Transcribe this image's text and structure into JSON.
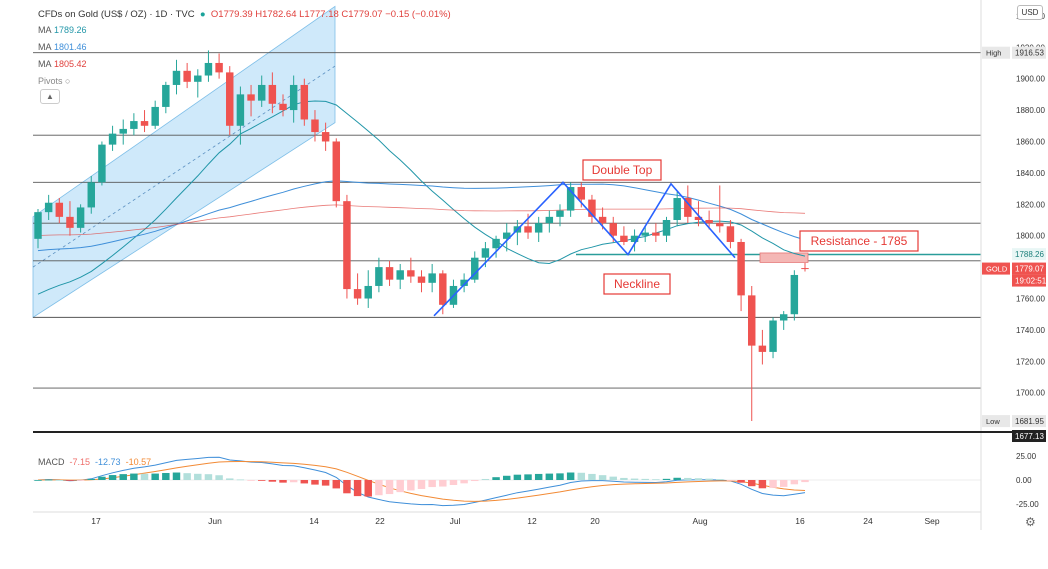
{
  "header": {
    "symbol": "CFDs on Gold (US$ / OZ) · 1D · TVC",
    "ohlc": "O1779.39 H1782.64 L1777.18 C1779.07 −0.15 (−0.01%)"
  },
  "indicators": {
    "ma": [
      {
        "label": "MA",
        "value": "1789.26",
        "color": "#2196a8"
      },
      {
        "label": "MA",
        "value": "1801.46",
        "color": "#3f8fd9"
      },
      {
        "label": "MA",
        "value": "1805.42",
        "color": "#e0403c"
      }
    ],
    "pivots_label": "Pivots",
    "collapse_icon": "chevron-up-icon"
  },
  "currency_button": "USD",
  "colors": {
    "up": "#26a69a",
    "down": "#ef5350",
    "channel": "#bfe1f8",
    "pattern": "#2962ff",
    "annotation": "#e53935"
  },
  "annotations": {
    "double_top": "Double Top",
    "neckline": "Neckline",
    "resistance": "Resistance - 1785"
  },
  "price_tags": {
    "high_label": "High",
    "high_value": "1916.53",
    "low_label": "Low",
    "low_value": "1681.95",
    "level_value": "1788.26",
    "gold_label": "GOLD",
    "gold_value": "1779.07",
    "countdown": "19:02:51",
    "bottom_value": "1677.13"
  },
  "macd": {
    "label": "MACD",
    "hist": "-7.15",
    "macd": "-12.73",
    "signal": "-10.57"
  },
  "chart_data": {
    "type": "candlestick",
    "title": "CFDs on Gold (US$ / OZ) · 1D · TVC",
    "y_ticks": [
      1940,
      1920,
      1900,
      1880,
      1860,
      1840,
      1820,
      1800,
      1780,
      1760,
      1740,
      1720,
      1700
    ],
    "y_range": [
      1675,
      1945
    ],
    "x_ticks": [
      "17",
      "Jun",
      "14",
      "22",
      "Jul",
      "12",
      "20",
      "Aug",
      "16",
      "24",
      "Sep"
    ],
    "horizontal_levels": [
      1916.53,
      1864,
      1834,
      1808,
      1784,
      1748,
      1703
    ],
    "resistance_level": 1785,
    "neckline_level": 1788,
    "candles": [
      [
        1798,
        1817,
        1792,
        1815
      ],
      [
        1815,
        1826,
        1810,
        1821
      ],
      [
        1821,
        1824,
        1808,
        1812
      ],
      [
        1812,
        1822,
        1800,
        1805
      ],
      [
        1805,
        1820,
        1802,
        1818
      ],
      [
        1818,
        1838,
        1814,
        1834
      ],
      [
        1834,
        1860,
        1832,
        1858
      ],
      [
        1858,
        1870,
        1854,
        1865
      ],
      [
        1865,
        1874,
        1858,
        1868
      ],
      [
        1868,
        1878,
        1864,
        1873
      ],
      [
        1873,
        1880,
        1866,
        1870
      ],
      [
        1870,
        1886,
        1868,
        1882
      ],
      [
        1882,
        1898,
        1878,
        1896
      ],
      [
        1896,
        1912,
        1890,
        1905
      ],
      [
        1905,
        1910,
        1894,
        1898
      ],
      [
        1898,
        1906,
        1888,
        1902
      ],
      [
        1902,
        1918,
        1898,
        1910
      ],
      [
        1910,
        1916,
        1900,
        1904
      ],
      [
        1904,
        1908,
        1864,
        1870
      ],
      [
        1870,
        1895,
        1858,
        1890
      ],
      [
        1890,
        1896,
        1876,
        1886
      ],
      [
        1886,
        1902,
        1882,
        1896
      ],
      [
        1896,
        1904,
        1878,
        1884
      ],
      [
        1884,
        1890,
        1876,
        1880
      ],
      [
        1880,
        1902,
        1872,
        1896
      ],
      [
        1896,
        1900,
        1870,
        1874
      ],
      [
        1874,
        1880,
        1860,
        1866
      ],
      [
        1866,
        1872,
        1854,
        1860
      ],
      [
        1860,
        1862,
        1818,
        1822
      ],
      [
        1822,
        1826,
        1760,
        1766
      ],
      [
        1766,
        1776,
        1756,
        1760
      ],
      [
        1760,
        1778,
        1754,
        1768
      ],
      [
        1768,
        1786,
        1764,
        1780
      ],
      [
        1780,
        1784,
        1768,
        1772
      ],
      [
        1772,
        1782,
        1766,
        1778
      ],
      [
        1778,
        1786,
        1770,
        1774
      ],
      [
        1774,
        1778,
        1764,
        1770
      ],
      [
        1770,
        1782,
        1764,
        1776
      ],
      [
        1776,
        1778,
        1750,
        1756
      ],
      [
        1756,
        1772,
        1754,
        1768
      ],
      [
        1768,
        1776,
        1764,
        1772
      ],
      [
        1772,
        1790,
        1770,
        1786
      ],
      [
        1786,
        1796,
        1780,
        1792
      ],
      [
        1792,
        1800,
        1786,
        1798
      ],
      [
        1798,
        1808,
        1790,
        1802
      ],
      [
        1802,
        1810,
        1794,
        1806
      ],
      [
        1806,
        1814,
        1798,
        1802
      ],
      [
        1802,
        1812,
        1796,
        1808
      ],
      [
        1808,
        1816,
        1802,
        1812
      ],
      [
        1812,
        1820,
        1806,
        1816
      ],
      [
        1816,
        1834,
        1812,
        1831
      ],
      [
        1831,
        1834,
        1818,
        1823
      ],
      [
        1823,
        1826,
        1808,
        1812
      ],
      [
        1812,
        1818,
        1804,
        1808
      ],
      [
        1808,
        1812,
        1796,
        1800
      ],
      [
        1800,
        1806,
        1794,
        1796
      ],
      [
        1796,
        1804,
        1790,
        1800
      ],
      [
        1800,
        1806,
        1796,
        1802
      ],
      [
        1802,
        1808,
        1796,
        1800
      ],
      [
        1800,
        1812,
        1796,
        1810
      ],
      [
        1810,
        1828,
        1806,
        1824
      ],
      [
        1824,
        1832,
        1808,
        1812
      ],
      [
        1812,
        1822,
        1806,
        1810
      ],
      [
        1810,
        1816,
        1804,
        1808
      ],
      [
        1808,
        1832,
        1802,
        1806
      ],
      [
        1806,
        1810,
        1792,
        1796
      ],
      [
        1796,
        1798,
        1752,
        1762
      ],
      [
        1762,
        1768,
        1682,
        1730
      ],
      [
        1730,
        1740,
        1718,
        1726
      ],
      [
        1726,
        1748,
        1722,
        1746
      ],
      [
        1746,
        1752,
        1740,
        1750
      ],
      [
        1750,
        1778,
        1746,
        1775
      ],
      [
        1779.39,
        1782.64,
        1777.18,
        1779.07
      ]
    ],
    "macd_y_ticks": [
      25,
      0,
      -25
    ],
    "macd_range": [
      -33,
      33
    ]
  }
}
